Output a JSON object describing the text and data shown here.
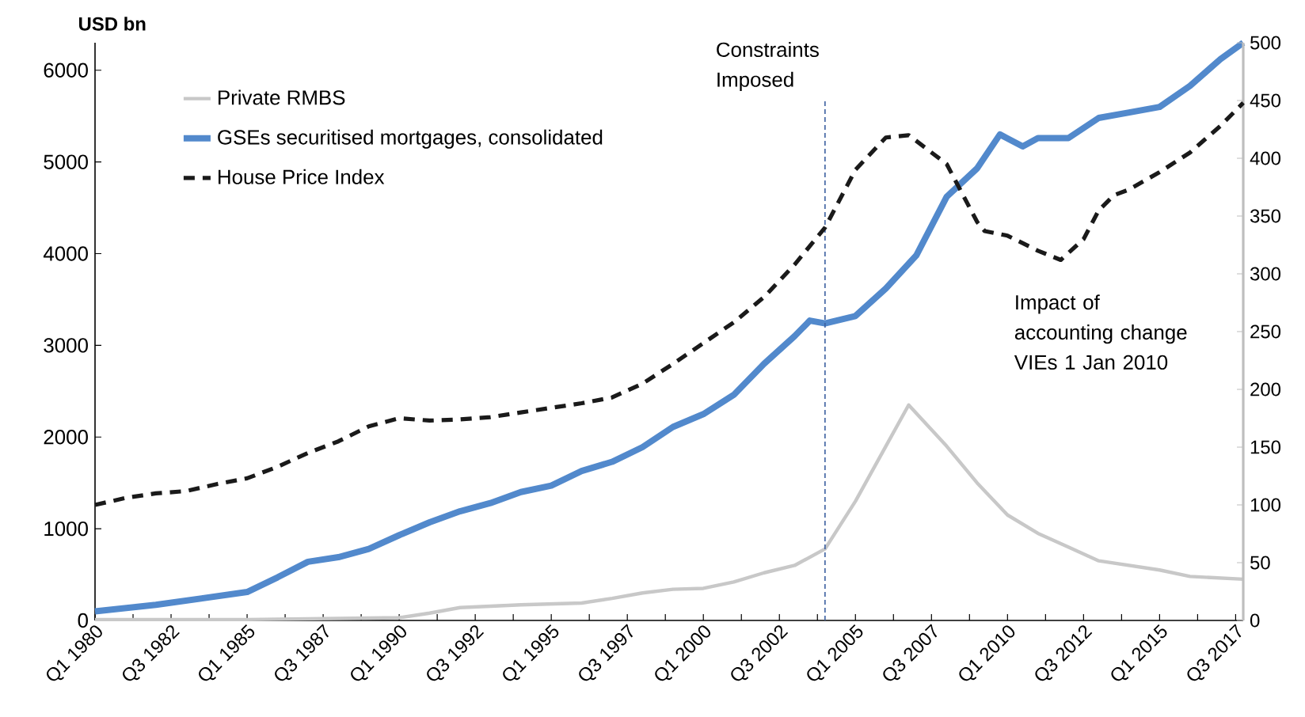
{
  "chart_data": {
    "type": "line",
    "ylabel": "USD bn",
    "xlim": [
      "1980-01",
      "2017-10"
    ],
    "xticks": [
      {
        "value": "1980-01",
        "label": "Q1 1980"
      },
      {
        "value": "1981-04",
        "label": null
      },
      {
        "value": "1982-07",
        "label": "Q3 1982"
      },
      {
        "value": "1983-10",
        "label": null
      },
      {
        "value": "1985-01",
        "label": "Q1 1985"
      },
      {
        "value": "1986-04",
        "label": null
      },
      {
        "value": "1987-07",
        "label": "Q3 1987"
      },
      {
        "value": "1988-10",
        "label": null
      },
      {
        "value": "1990-01",
        "label": "Q1 1990"
      },
      {
        "value": "1991-04",
        "label": null
      },
      {
        "value": "1992-07",
        "label": "Q3 1992"
      },
      {
        "value": "1993-10",
        "label": null
      },
      {
        "value": "1995-01",
        "label": "Q1 1995"
      },
      {
        "value": "1996-04",
        "label": null
      },
      {
        "value": "1997-07",
        "label": "Q3 1997"
      },
      {
        "value": "1998-10",
        "label": null
      },
      {
        "value": "2000-01",
        "label": "Q1 2000"
      },
      {
        "value": "2001-04",
        "label": null
      },
      {
        "value": "2002-07",
        "label": "Q3 2002"
      },
      {
        "value": "2003-10",
        "label": null
      },
      {
        "value": "2005-01",
        "label": "Q1 2005"
      },
      {
        "value": "2006-04",
        "label": null
      },
      {
        "value": "2007-07",
        "label": "Q3 2007"
      },
      {
        "value": "2008-10",
        "label": null
      },
      {
        "value": "2010-01",
        "label": "Q1 2010"
      },
      {
        "value": "2011-04",
        "label": null
      },
      {
        "value": "2012-07",
        "label": "Q3 2012"
      },
      {
        "value": "2013-10",
        "label": null
      },
      {
        "value": "2015-01",
        "label": "Q1 2015"
      },
      {
        "value": "2016-04",
        "label": null
      },
      {
        "value": "2017-07",
        "label": "Q3 2017"
      }
    ],
    "ylim": [
      0,
      6300
    ],
    "yticks": [
      0,
      1000,
      2000,
      3000,
      4000,
      5000,
      6000
    ],
    "y2lim": [
      0,
      500
    ],
    "y2ticks": [
      0,
      50,
      100,
      150,
      200,
      250,
      300,
      350,
      400,
      450,
      500
    ],
    "legend": "top left",
    "series": [
      {
        "name": "Private RMBS",
        "color": "#c8c8c8",
        "line_style": "solid",
        "x": [
          "1980-01",
          "1985-01",
          "1990-01",
          "1991-01",
          "1992-01",
          "1994-01",
          "1996-01",
          "1997-01",
          "1998-01",
          "1999-01",
          "2000-01",
          "2001-01",
          "2002-01",
          "2003-01",
          "2004-01",
          "2005-01",
          "2006-01",
          "2006-10",
          "2008-01",
          "2009-01",
          "2010-01",
          "2011-01",
          "2012-01",
          "2013-01",
          "2014-01",
          "2015-01",
          "2016-01",
          "2017-10"
        ],
        "values": [
          10,
          10,
          30,
          80,
          140,
          170,
          190,
          240,
          300,
          340,
          350,
          420,
          520,
          600,
          780,
          1300,
          1900,
          2350,
          1900,
          1500,
          1150,
          950,
          800,
          650,
          600,
          550,
          480,
          450
        ]
      },
      {
        "name": "GSEs securitised mortgages, consolidated",
        "color": "#5289cc",
        "line_style": "solid",
        "x": [
          "1980-01",
          "1982-01",
          "1985-01",
          "1986-01",
          "1987-01",
          "1988-01",
          "1989-01",
          "1990-01",
          "1991-01",
          "1992-01",
          "1993-01",
          "1994-01",
          "1995-01",
          "1996-01",
          "1997-01",
          "1998-01",
          "1999-01",
          "2000-01",
          "2001-01",
          "2002-01",
          "2003-01",
          "2003-07",
          "2004-01",
          "2005-01",
          "2006-01",
          "2007-01",
          "2008-01",
          "2009-01",
          "2009-10",
          "2010-07",
          "2011-01",
          "2012-01",
          "2013-01",
          "2014-01",
          "2015-01",
          "2016-01",
          "2017-01",
          "2017-10"
        ],
        "values": [
          100,
          170,
          310,
          470,
          640,
          690,
          780,
          930,
          1070,
          1190,
          1280,
          1400,
          1470,
          1630,
          1730,
          1890,
          2110,
          2250,
          2460,
          2800,
          3100,
          3270,
          3240,
          3320,
          3620,
          3980,
          4620,
          4930,
          5300,
          5170,
          5260,
          5260,
          5480,
          5540,
          5600,
          5830,
          6120,
          6300
        ]
      },
      {
        "name": "House Price Index",
        "color": "#1a1a1a",
        "line_style": "dashed",
        "axis": "y2",
        "x": [
          "1980-01",
          "1981-01",
          "1982-01",
          "1983-01",
          "1984-01",
          "1985-01",
          "1986-01",
          "1987-01",
          "1988-01",
          "1989-01",
          "1990-01",
          "1991-01",
          "1992-01",
          "1993-01",
          "1994-01",
          "1995-01",
          "1996-01",
          "1997-01",
          "1998-01",
          "1999-01",
          "2000-01",
          "2001-01",
          "2002-01",
          "2003-01",
          "2004-01",
          "2005-01",
          "2006-01",
          "2006-10",
          "2008-01",
          "2009-01",
          "2009-04",
          "2010-01",
          "2011-01",
          "2011-10",
          "2012-07",
          "2013-01",
          "2013-07",
          "2014-01",
          "2015-01",
          "2016-01",
          "2017-01",
          "2017-10"
        ],
        "values": [
          100,
          106,
          110,
          112,
          118,
          123,
          133,
          145,
          155,
          168,
          175,
          173,
          174,
          176,
          180,
          184,
          188,
          193,
          205,
          222,
          240,
          258,
          280,
          308,
          340,
          390,
          418,
          420,
          395,
          345,
          337,
          333,
          320,
          312,
          330,
          355,
          368,
          373,
          388,
          405,
          428,
          448
        ]
      }
    ],
    "ref_lines": [
      {
        "axis": "x",
        "value": "2004-01",
        "label": "Constraints Imposed",
        "color": "#3b5fa0",
        "line_style": "dashed"
      }
    ],
    "annotations": [
      "Impact of accounting change VIEs 1 Jan 2010"
    ]
  }
}
